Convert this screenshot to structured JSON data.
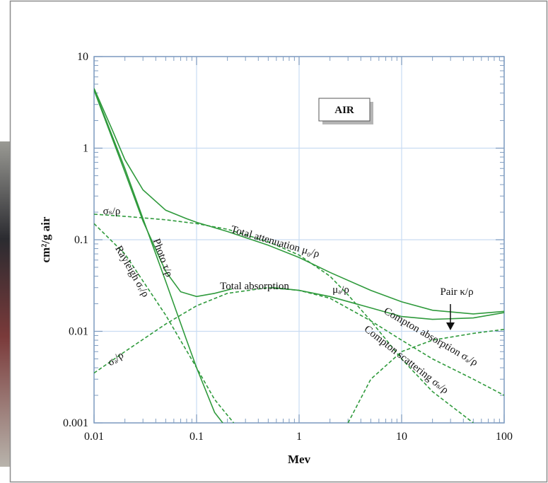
{
  "chart_data": {
    "type": "line",
    "annotation": "AIR",
    "xlabel": "Mev",
    "ylabel": "cm²/g air",
    "log_x": true,
    "log_y": true,
    "grid": true,
    "xlim": [
      0.01,
      100
    ],
    "xticks": [
      0.01,
      0.1,
      1,
      10,
      100
    ],
    "ylim": [
      0.001,
      10
    ],
    "yticks": [
      0.001,
      0.01,
      0.1,
      1,
      10
    ],
    "series": [
      {
        "labels": [
          "Total attenuation μ₀/ρ"
        ],
        "color": "#2f9a3c",
        "dashed": false,
        "x": [
          0.01,
          0.015,
          0.02,
          0.03,
          0.05,
          0.08,
          0.1,
          0.2,
          0.5,
          1,
          2,
          5,
          10,
          20,
          50,
          100
        ],
        "values": [
          4.5,
          1.6,
          0.75,
          0.35,
          0.21,
          0.17,
          0.155,
          0.123,
          0.087,
          0.064,
          0.044,
          0.028,
          0.021,
          0.017,
          0.0155,
          0.0165
        ]
      },
      {
        "labels": [
          "Photo τ/ρ"
        ],
        "color": "#2f9a3c",
        "dashed": false,
        "x": [
          0.01,
          0.02,
          0.03,
          0.05,
          0.08,
          0.1,
          0.15,
          0.18
        ],
        "values": [
          4.4,
          0.6,
          0.17,
          0.035,
          0.008,
          0.004,
          0.0013,
          0.001
        ]
      },
      {
        "labels": [
          "Total absorption",
          "μₐ/ρ"
        ],
        "color": "#2f9a3c",
        "dashed": false,
        "x": [
          0.01,
          0.02,
          0.03,
          0.05,
          0.07,
          0.1,
          0.15,
          0.22,
          0.35,
          0.55,
          1,
          2,
          5,
          10,
          20,
          50,
          100
        ],
        "values": [
          4.3,
          0.55,
          0.16,
          0.045,
          0.027,
          0.024,
          0.026,
          0.029,
          null,
          0.03,
          0.028,
          0.024,
          0.018,
          0.0145,
          0.0135,
          0.014,
          0.016
        ]
      },
      {
        "labels": [
          "σₛ/ρ",
          "Compton scattering σₛ/ρ"
        ],
        "color": "#2f9a3c",
        "dashed": true,
        "x": [
          0.01,
          0.02,
          0.05,
          0.1,
          0.2,
          0.5,
          1,
          2,
          3,
          5,
          10,
          20,
          50
        ],
        "values": [
          0.19,
          0.18,
          0.165,
          0.15,
          0.13,
          0.095,
          0.068,
          0.04,
          0.025,
          0.013,
          0.005,
          0.0022,
          0.001
        ]
      },
      {
        "labels": [
          "Rayleigh σᵣ/ρ"
        ],
        "color": "#2f9a3c",
        "dashed": true,
        "x": [
          0.01,
          0.02,
          0.05,
          0.1,
          0.15,
          0.23
        ],
        "values": [
          0.15,
          0.07,
          0.015,
          0.004,
          0.0018,
          0.001
        ]
      },
      {
        "labels": [
          "σₐ/ρ",
          "Compton absorption σₐ/ρ"
        ],
        "color": "#2f9a3c",
        "dashed": true,
        "x": [
          0.01,
          0.02,
          0.05,
          0.1,
          0.2,
          0.5,
          1,
          2,
          5,
          10,
          20,
          50,
          100
        ],
        "values": [
          0.0035,
          0.006,
          0.012,
          0.019,
          0.026,
          0.03,
          0.028,
          0.023,
          0.013,
          0.008,
          0.005,
          0.003,
          0.002
        ]
      },
      {
        "labels": [
          "Pair κ/ρ"
        ],
        "color": "#2f9a3c",
        "dashed": true,
        "x": [
          3,
          5,
          10,
          20,
          50,
          100
        ],
        "values": [
          0.001,
          0.003,
          0.006,
          0.008,
          0.0095,
          0.0105
        ]
      }
    ]
  }
}
